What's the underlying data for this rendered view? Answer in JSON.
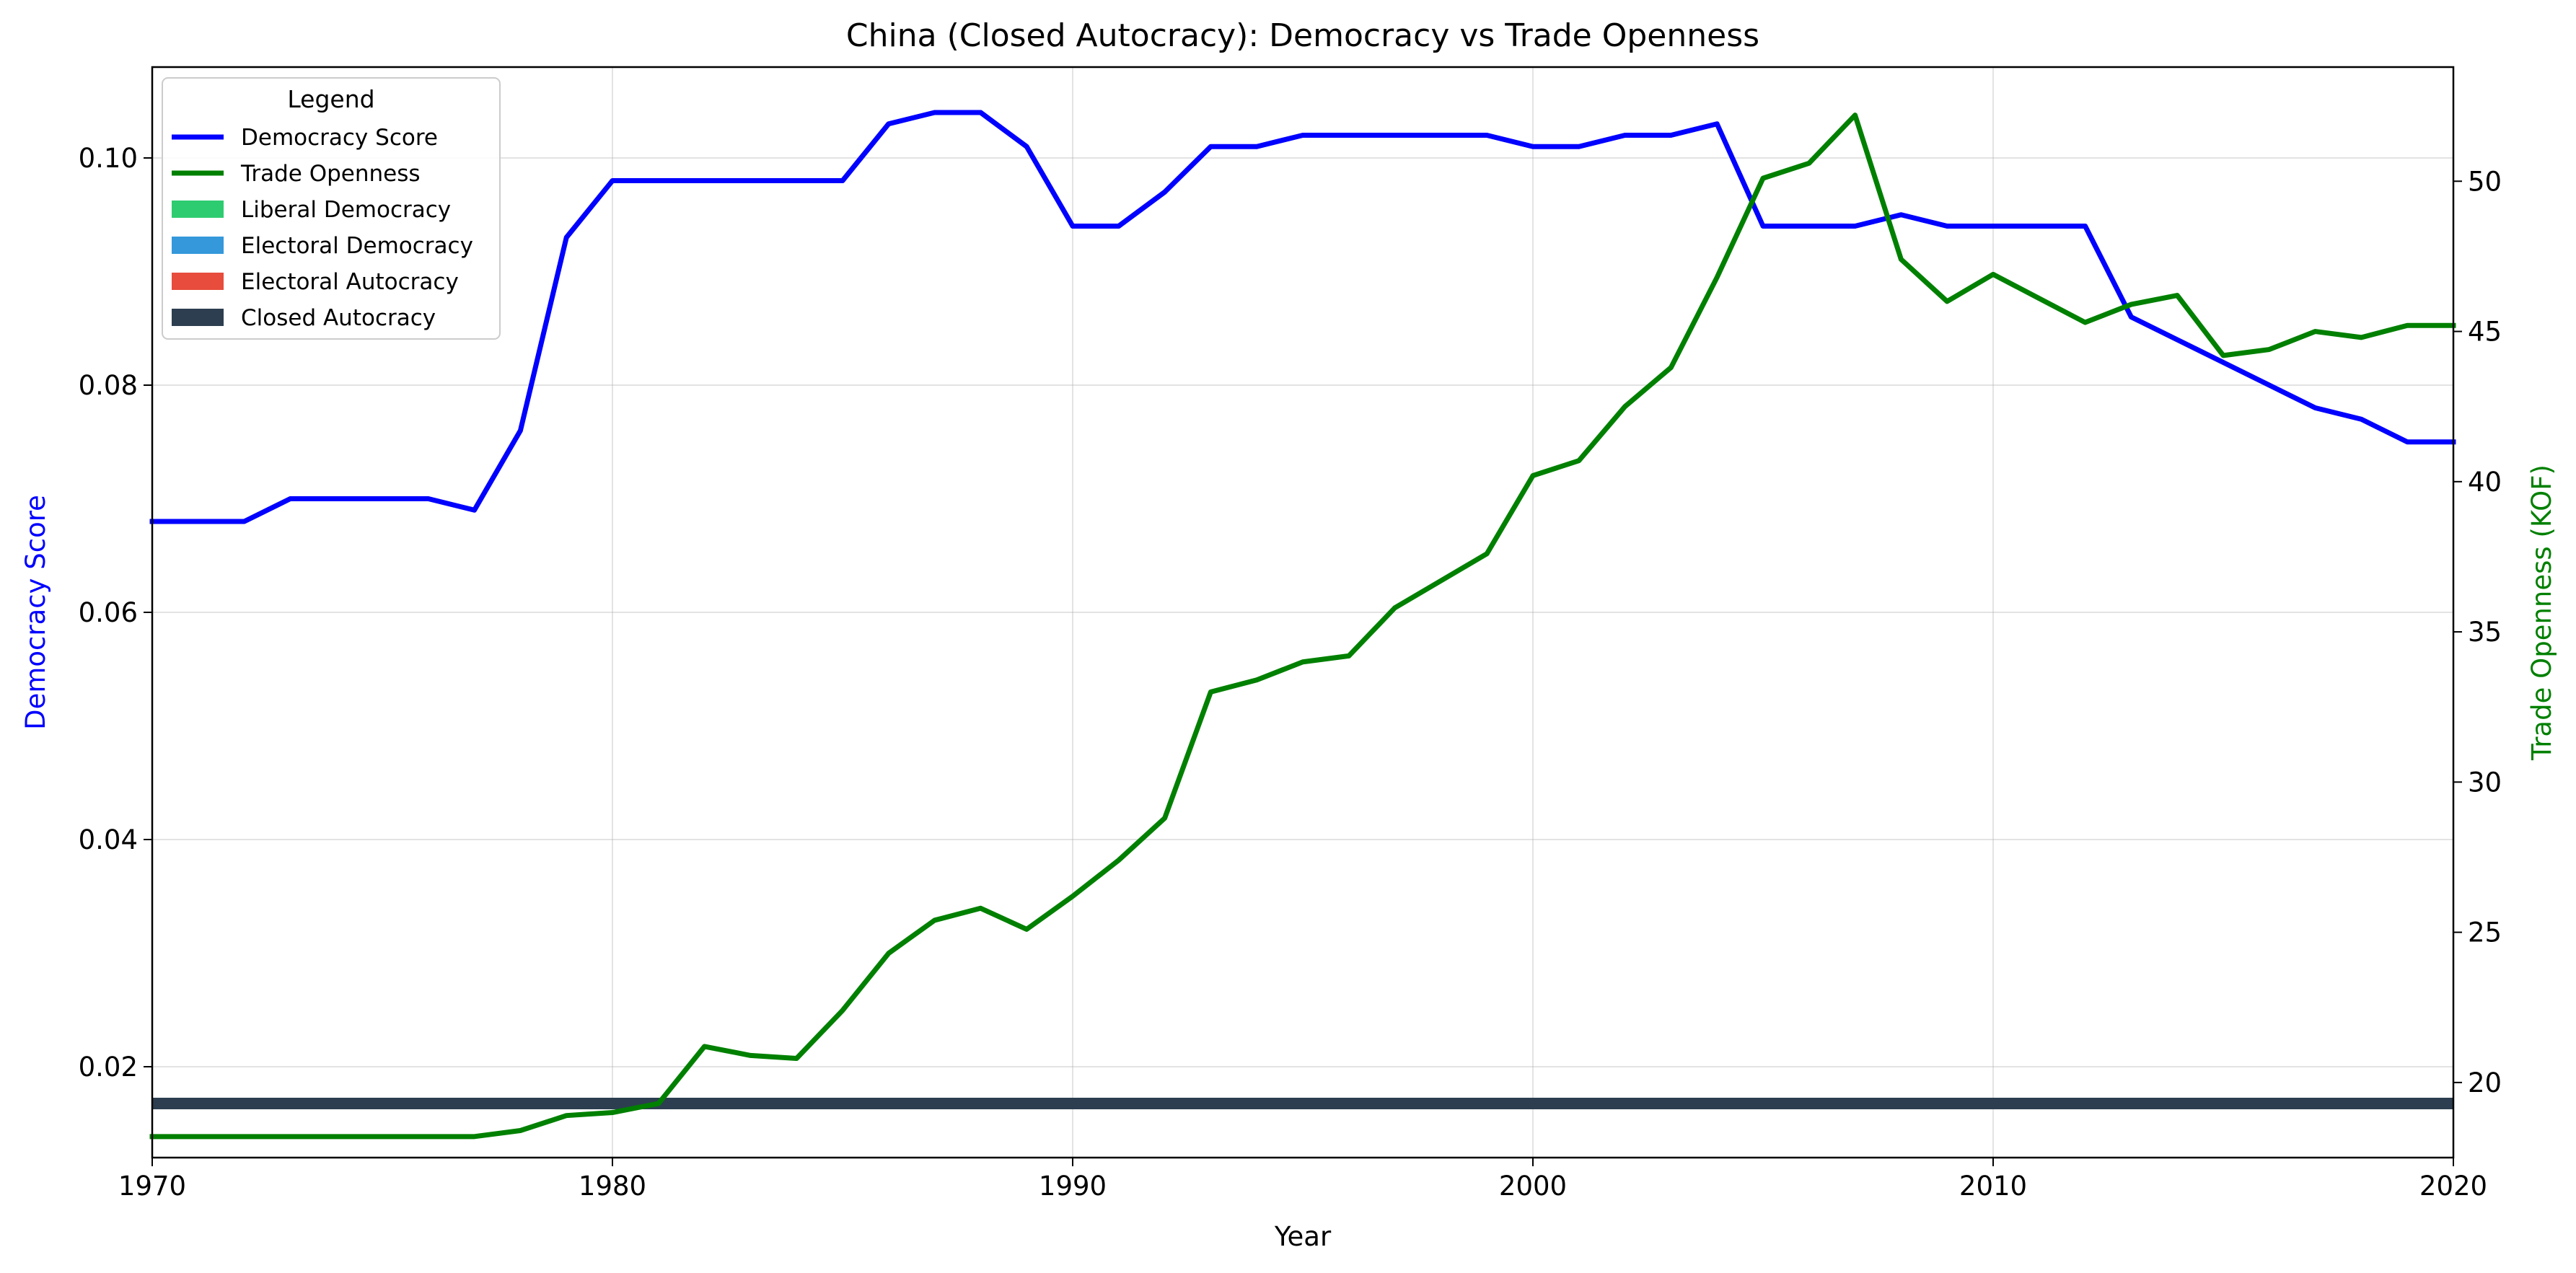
{
  "chart_data": {
    "type": "line",
    "title": "China (Closed Autocracy): Democracy vs Trade Openness",
    "xlabel": "Year",
    "ylabel_left": "Democracy Score",
    "ylabel_right": "Trade Openness (KOF)",
    "xlim": [
      1970,
      2020
    ],
    "ylim_left": [
      0.012,
      0.108
    ],
    "ylim_right": [
      17.5,
      53.8
    ],
    "x_ticks": [
      1970,
      1980,
      1990,
      2000,
      2010,
      2020
    ],
    "y_left_ticks": [
      0.02,
      0.04,
      0.06,
      0.08,
      0.1
    ],
    "y_left_tick_labels": [
      "0.02",
      "0.04",
      "0.06",
      "0.08",
      "0.10"
    ],
    "y_right_ticks": [
      20,
      25,
      30,
      35,
      40,
      45,
      50
    ],
    "grid": true,
    "legend": {
      "title": "Legend",
      "placement": "top-left",
      "entries": [
        {
          "label": "Democracy Score",
          "kind": "line",
          "color": "#0000ff"
        },
        {
          "label": "Trade Openness",
          "kind": "line",
          "color": "#008000"
        },
        {
          "label": "Liberal Democracy",
          "kind": "patch",
          "color": "#2ecc71"
        },
        {
          "label": "Electoral Democracy",
          "kind": "patch",
          "color": "#3498db"
        },
        {
          "label": "Electoral Autocracy",
          "kind": "patch",
          "color": "#e74c3c"
        },
        {
          "label": "Closed Autocracy",
          "kind": "patch",
          "color": "#2c3e50"
        }
      ]
    },
    "x": [
      1970,
      1971,
      1972,
      1973,
      1974,
      1975,
      1976,
      1977,
      1978,
      1979,
      1980,
      1981,
      1982,
      1983,
      1984,
      1985,
      1986,
      1987,
      1988,
      1989,
      1990,
      1991,
      1992,
      1993,
      1994,
      1995,
      1996,
      1997,
      1998,
      1999,
      2000,
      2001,
      2002,
      2003,
      2004,
      2005,
      2006,
      2007,
      2008,
      2009,
      2010,
      2011,
      2012,
      2013,
      2014,
      2015,
      2016,
      2017,
      2018,
      2019,
      2020
    ],
    "series": [
      {
        "name": "Democracy Score",
        "axis": "left",
        "color": "#0000ff",
        "values": [
          0.068,
          0.068,
          0.068,
          0.07,
          0.07,
          0.07,
          0.07,
          0.069,
          0.076,
          0.093,
          0.098,
          0.098,
          0.098,
          0.098,
          0.098,
          0.098,
          0.103,
          0.104,
          0.104,
          0.101,
          0.094,
          0.094,
          0.097,
          0.101,
          0.101,
          0.102,
          0.102,
          0.102,
          0.102,
          0.102,
          0.101,
          0.101,
          0.102,
          0.102,
          0.103,
          0.094,
          0.094,
          0.094,
          0.095,
          0.094,
          0.094,
          0.094,
          0.094,
          0.086,
          0.084,
          0.082,
          0.08,
          0.078,
          0.077,
          0.075,
          0.075
        ]
      },
      {
        "name": "Trade Openness",
        "axis": "right",
        "color": "#008000",
        "values": [
          18.2,
          18.2,
          18.2,
          18.2,
          18.2,
          18.2,
          18.2,
          18.2,
          18.4,
          18.9,
          19.0,
          19.3,
          21.2,
          20.9,
          20.8,
          22.4,
          24.3,
          25.4,
          25.8,
          25.1,
          26.2,
          27.4,
          28.8,
          33.0,
          33.4,
          34.0,
          34.2,
          35.8,
          36.7,
          37.6,
          40.2,
          40.7,
          42.5,
          43.8,
          46.8,
          50.1,
          50.6,
          52.2,
          47.4,
          46.0,
          46.9,
          46.1,
          45.3,
          45.9,
          46.2,
          44.2,
          44.4,
          45.0,
          44.8,
          45.2,
          45.2
        ]
      }
    ],
    "regime_band": {
      "label": "Closed Autocracy",
      "color": "#2c3e50",
      "x_range": [
        1970,
        2020
      ]
    }
  }
}
